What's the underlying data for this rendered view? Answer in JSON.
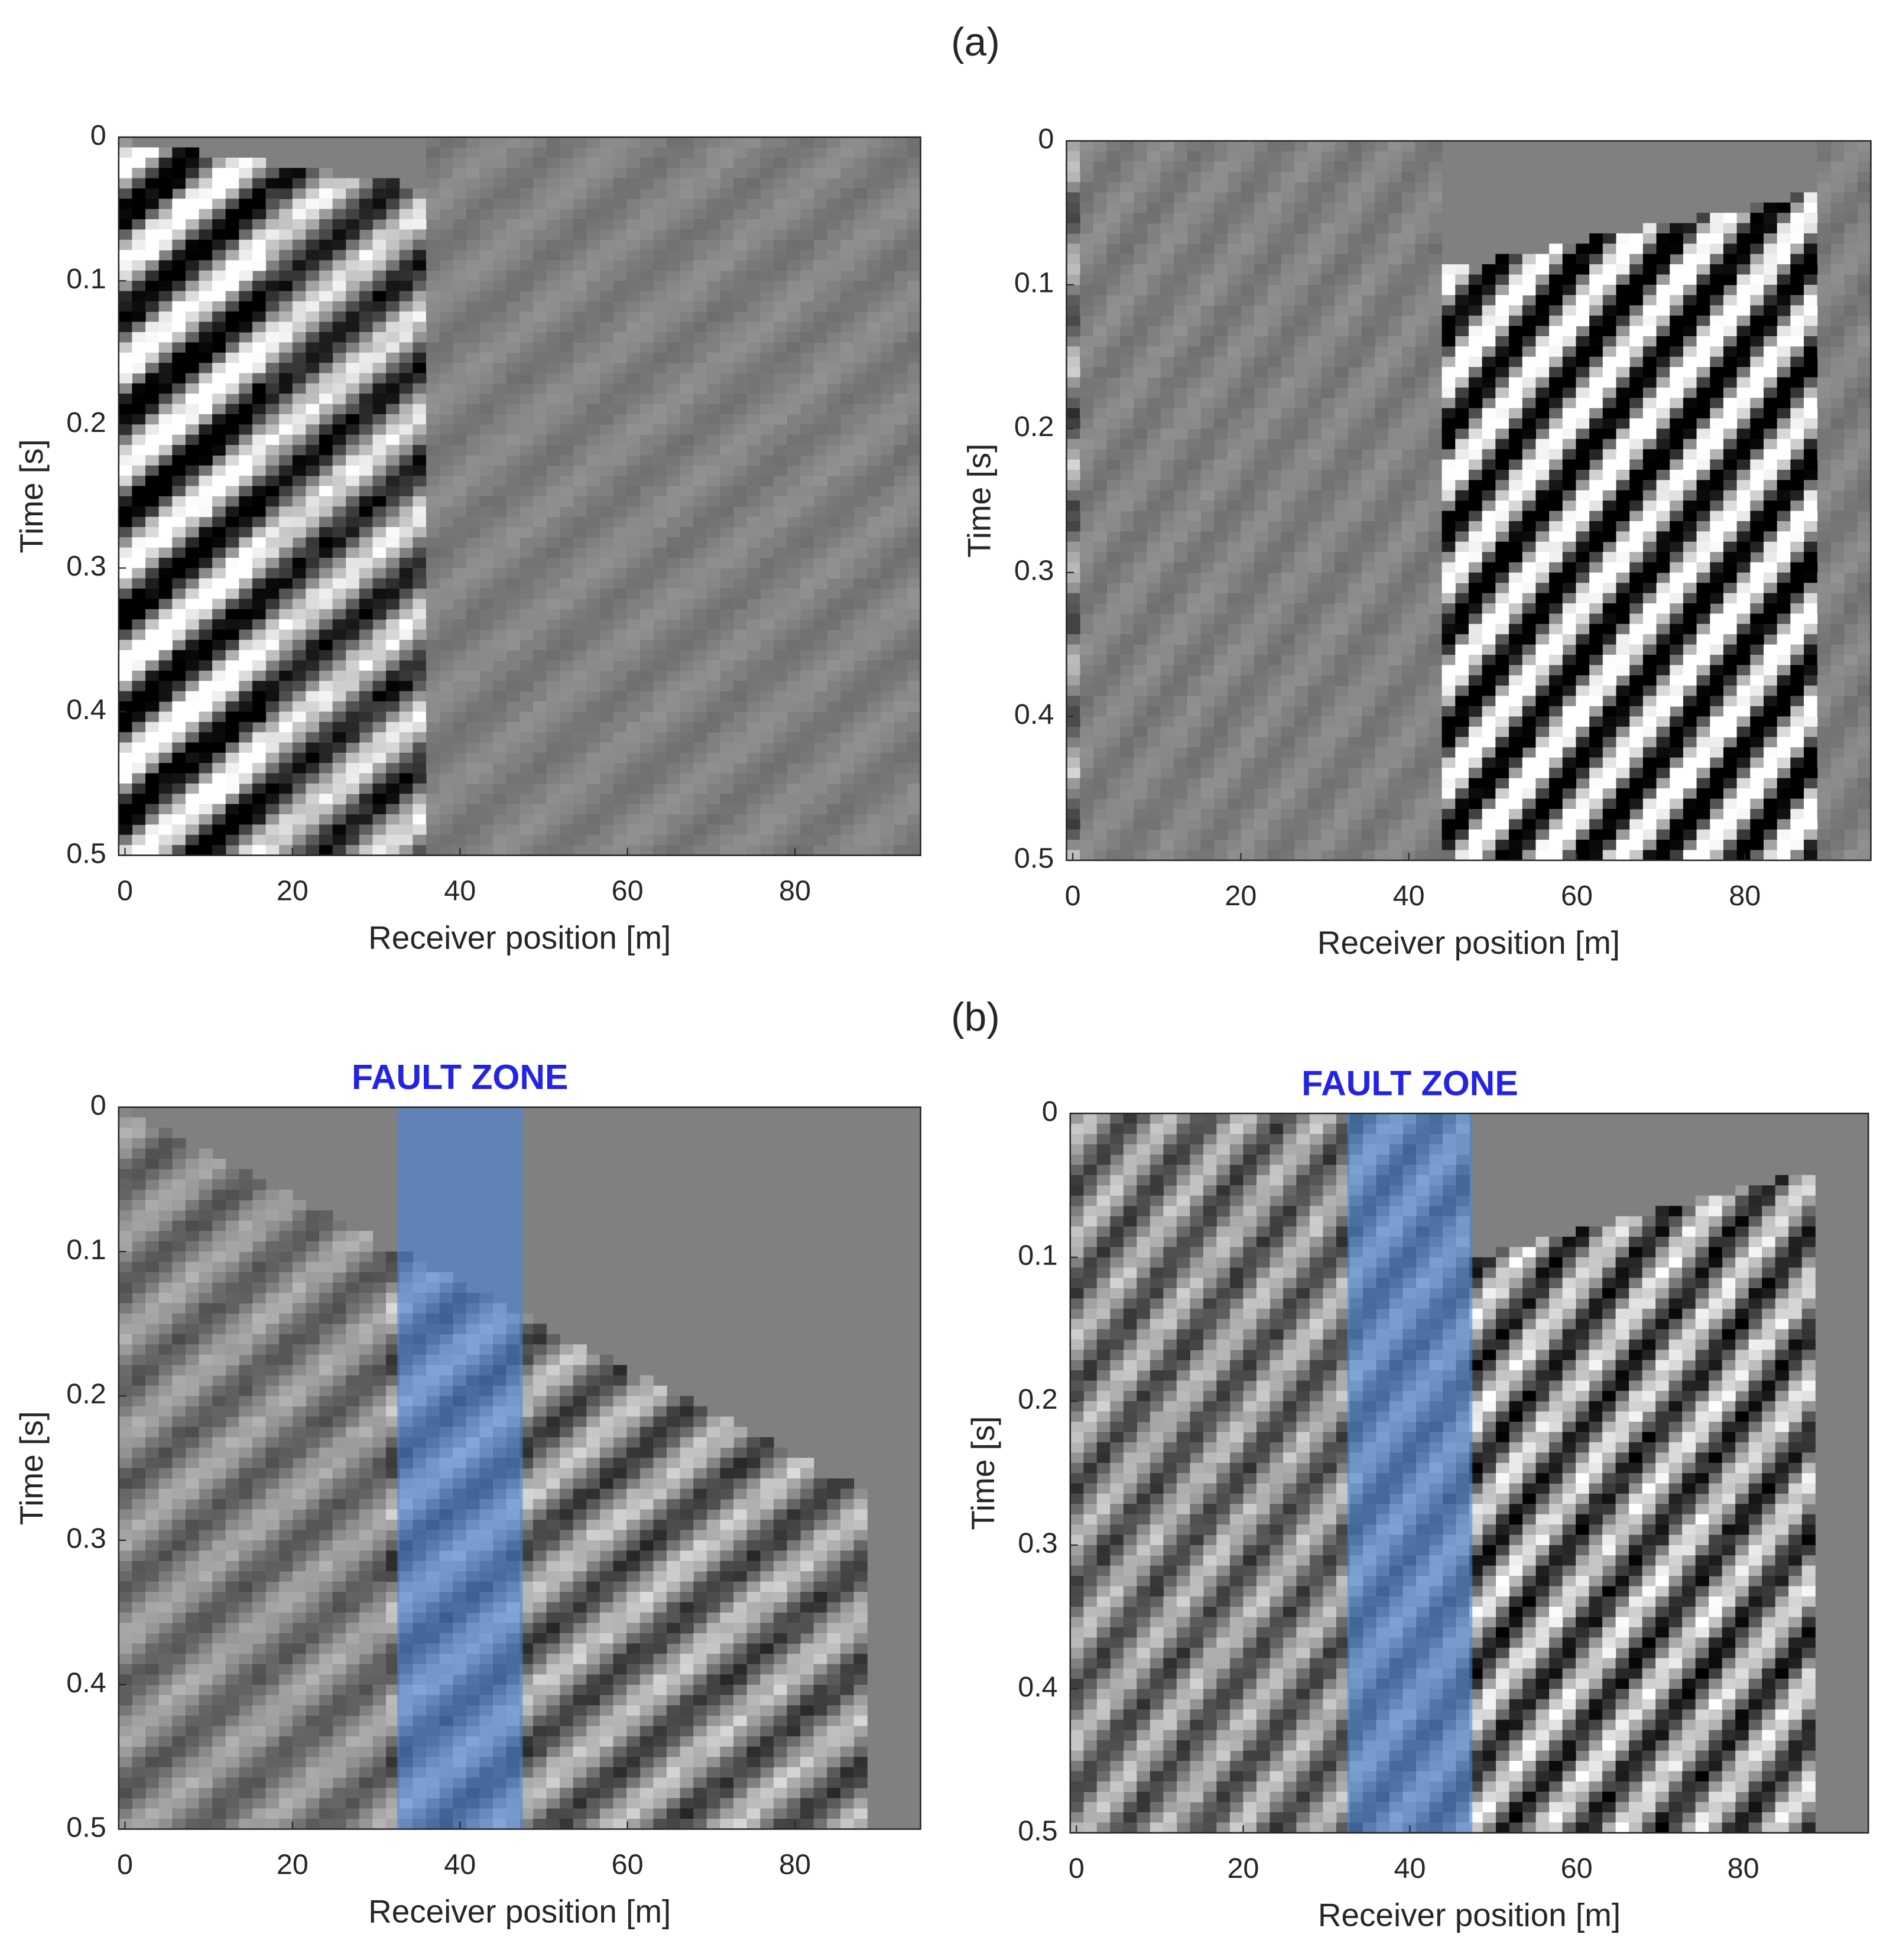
{
  "sections": [
    "(a)",
    "(b)"
  ],
  "chart_data": [
    {
      "type": "image",
      "section": 0,
      "xlabel": "Receiver position [m]",
      "ylabel": "Time [s]",
      "xlim": [
        -0.75,
        95
      ],
      "ylim": [
        0,
        0.5
      ],
      "y_reversed": true,
      "xticks": [
        0,
        20,
        40,
        60,
        80
      ],
      "yticks": [
        0,
        0.1,
        0.2,
        0.3,
        0.4,
        0.5
      ]
    },
    {
      "type": "image",
      "section": 0,
      "xlabel": "Receiver position [m]",
      "ylabel": "Time [s]",
      "xlim": [
        -0.75,
        95
      ],
      "ylim": [
        0,
        0.5
      ],
      "y_reversed": true,
      "xticks": [
        0,
        20,
        40,
        60,
        80
      ],
      "yticks": [
        0,
        0.1,
        0.2,
        0.3,
        0.4,
        0.5
      ]
    },
    {
      "type": "image",
      "section": 1,
      "xlabel": "Receiver position [m]",
      "ylabel": "Time [s]",
      "xlim": [
        -0.75,
        95
      ],
      "ylim": [
        0,
        0.5
      ],
      "y_reversed": true,
      "xticks": [
        0,
        20,
        40,
        60,
        80
      ],
      "yticks": [
        0,
        0.1,
        0.2,
        0.3,
        0.4,
        0.5
      ],
      "annotation": "FAULT ZONE",
      "highlight": {
        "x": [
          32.5,
          47.5
        ],
        "color": "#4a86d8"
      }
    },
    {
      "type": "image",
      "section": 1,
      "xlabel": "Receiver position [m]",
      "ylabel": "Time [s]",
      "xlim": [
        -0.75,
        95
      ],
      "ylim": [
        0,
        0.5
      ],
      "y_reversed": true,
      "xticks": [
        0,
        20,
        40,
        60,
        80
      ],
      "yticks": [
        0,
        0.1,
        0.2,
        0.3,
        0.4,
        0.5
      ],
      "annotation": "FAULT ZONE",
      "highlight": {
        "x": [
          32.5,
          47.5
        ],
        "color": "#4a86d8"
      }
    }
  ]
}
